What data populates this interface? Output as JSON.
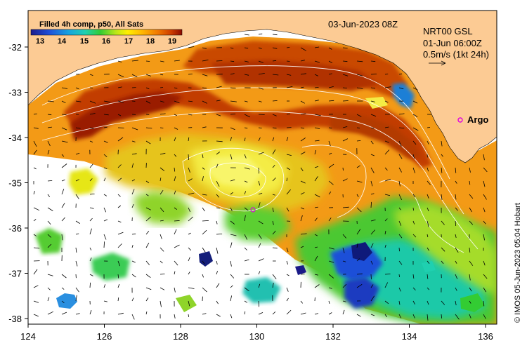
{
  "header": {
    "legend_title": "Filled 4h comp, p50, All Sats",
    "date": "03-Jun-2023 08Z",
    "current_product": "NRT00 GSL",
    "current_time": "01-Jun 06:00Z",
    "vector_scale": "0.5m/s (1kt 24h)",
    "credit": "© IMOS 05-Jun-2023 05:04 Hobart"
  },
  "colorbar": {
    "ticks": [
      "13",
      "14",
      "15",
      "16",
      "17",
      "18",
      "19"
    ],
    "colors": [
      "#1b1b8c",
      "#1f4fd8",
      "#16a3e0",
      "#1fd0b0",
      "#33cc33",
      "#b8e619",
      "#ffee00",
      "#ffb400",
      "#f07800",
      "#cc3c00",
      "#8c0a00"
    ]
  },
  "axes": {
    "x_ticks": [
      "124",
      "126",
      "128",
      "130",
      "132",
      "134",
      "136"
    ],
    "y_ticks": [
      "-32",
      "-33",
      "-34",
      "-35",
      "-36",
      "-37",
      "-38"
    ]
  },
  "markers": {
    "argo_label": "Argo"
  },
  "colors": {
    "land": "#fccb94",
    "nodata": "#ffffff",
    "argo_marker": "#e000e0",
    "contour": "#ffffff"
  }
}
